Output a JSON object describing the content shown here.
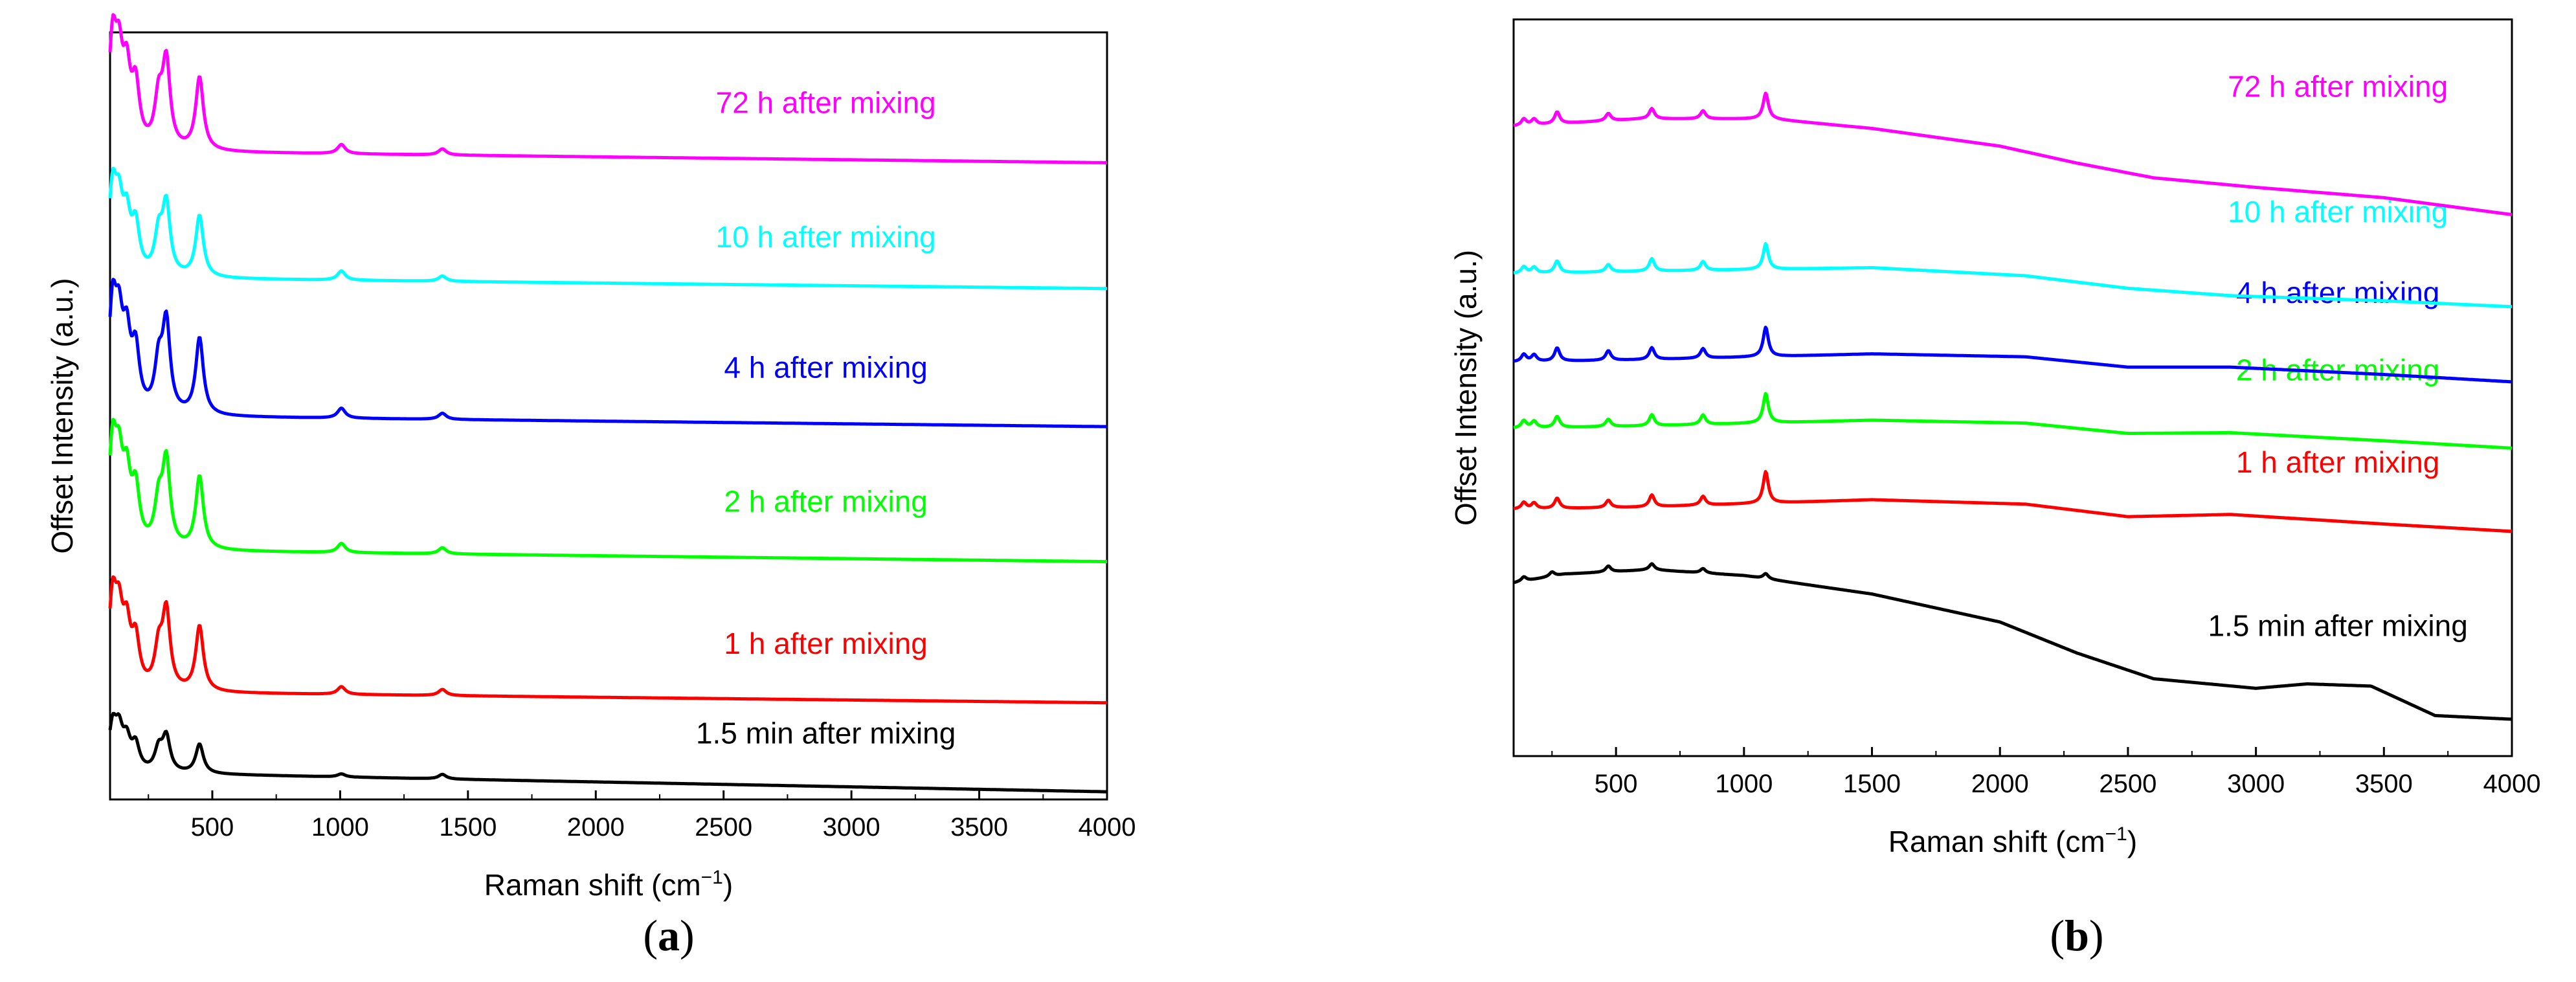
{
  "chart_data": [
    {
      "type": "line",
      "panel_label": "a",
      "xlabel": "Raman shift (cm",
      "xlabel_sup": "−1",
      "xlabel_end": ")",
      "ylabel": "Offset Intensity (a.u.)",
      "xlim": [
        100,
        4000
      ],
      "ylim": [
        0,
        100
      ],
      "xticks": [
        500,
        1000,
        1500,
        2000,
        2500,
        3000,
        3500,
        4000
      ],
      "yticks_labeled": false,
      "series": [
        {
          "name": "1.5 min after mixing",
          "color": "#000000",
          "baseline": 3.5,
          "end": 1.0,
          "label_x": 2900,
          "label_y": 7.3,
          "peaks": [
            [
              110,
              5.5
            ],
            [
              135,
              4.5
            ],
            [
              165,
              3.5
            ],
            [
              200,
              3.2
            ],
            [
              290,
              2.8
            ],
            [
              320,
              4.5
            ],
            [
              450,
              3.8
            ],
            [
              1005,
              0.4
            ],
            [
              1400,
              0.6
            ]
          ]
        },
        {
          "name": "1 h after mixing",
          "color": "#ff0000",
          "baseline": 14.0,
          "end": 12.6,
          "label_x": 2900,
          "label_y": 19.0,
          "peaks": [
            [
              110,
              11.0
            ],
            [
              135,
              8.0
            ],
            [
              165,
              7.0
            ],
            [
              200,
              6.0
            ],
            [
              290,
              5.0
            ],
            [
              320,
              10.0
            ],
            [
              450,
              8.5
            ],
            [
              1005,
              1.0
            ],
            [
              1400,
              0.8
            ]
          ]
        },
        {
          "name": "2 h after mixing",
          "color": "#00ff00",
          "baseline": 32.5,
          "end": 31.0,
          "label_x": 2900,
          "label_y": 37.5,
          "peaks": [
            [
              110,
              12.5
            ],
            [
              135,
              9.0
            ],
            [
              165,
              8.0
            ],
            [
              200,
              7.0
            ],
            [
              290,
              5.5
            ],
            [
              320,
              11.0
            ],
            [
              450,
              9.5
            ],
            [
              1005,
              1.2
            ],
            [
              1400,
              0.8
            ]
          ]
        },
        {
          "name": "4 h after mixing",
          "color": "#0000ff",
          "baseline": 50.0,
          "end": 48.6,
          "label_x": 2900,
          "label_y": 55.0,
          "peaks": [
            [
              110,
              13.0
            ],
            [
              135,
              9.5
            ],
            [
              165,
              8.5
            ],
            [
              200,
              7.5
            ],
            [
              290,
              6.0
            ],
            [
              320,
              11.5
            ],
            [
              450,
              10.0
            ],
            [
              1005,
              1.3
            ],
            [
              1400,
              0.8
            ]
          ]
        },
        {
          "name": "10 h after mixing",
          "color": "#00ffff",
          "baseline": 68.0,
          "end": 66.6,
          "label_x": 2900,
          "label_y": 72.0,
          "peaks": [
            [
              110,
              10.5
            ],
            [
              135,
              7.5
            ],
            [
              165,
              6.5
            ],
            [
              200,
              6.0
            ],
            [
              290,
              5.0
            ],
            [
              320,
              9.0
            ],
            [
              450,
              8.0
            ],
            [
              1005,
              1.2
            ],
            [
              1400,
              0.7
            ]
          ]
        },
        {
          "name": "72 h after mixing",
          "color": "#ff00ff",
          "baseline": 84.5,
          "end": 83.0,
          "label_x": 2900,
          "label_y": 89.5,
          "peaks": [
            [
              110,
              13.0
            ],
            [
              135,
              9.5
            ],
            [
              165,
              8.5
            ],
            [
              200,
              7.5
            ],
            [
              290,
              6.0
            ],
            [
              320,
              11.0
            ],
            [
              450,
              9.5
            ],
            [
              1005,
              1.2
            ],
            [
              1400,
              0.8
            ]
          ]
        }
      ]
    },
    {
      "type": "line",
      "panel_label": "b",
      "xlabel": "Raman shift (cm",
      "xlabel_sup": "−1",
      "xlabel_end": ")",
      "ylabel": "Offset Intensity (a.u.)",
      "xlim": [
        100,
        4000
      ],
      "ylim": [
        0,
        100
      ],
      "xticks": [
        500,
        1000,
        1500,
        2000,
        2500,
        3000,
        3500,
        4000
      ],
      "yticks_labeled": false,
      "series": [
        {
          "name": "1.5 min after mixing",
          "color": "#000000",
          "curve": [
            [
              100,
              23.5
            ],
            [
              300,
              24.7
            ],
            [
              640,
              25.3
            ],
            [
              1000,
              24.5
            ],
            [
              1500,
              22.0
            ],
            [
              2000,
              18.2
            ],
            [
              2300,
              14.0
            ],
            [
              2600,
              10.5
            ],
            [
              3000,
              9.2
            ],
            [
              3200,
              9.8
            ],
            [
              3450,
              9.5
            ],
            [
              3700,
              5.5
            ],
            [
              4000,
              5.0
            ]
          ],
          "peaks": [
            [
              140,
              0.6
            ],
            [
              250,
              0.6
            ],
            [
              470,
              0.8
            ],
            [
              640,
              0.8
            ],
            [
              840,
              0.6
            ],
            [
              1085,
              0.7
            ]
          ],
          "label_x": 3320,
          "label_y": 16.3
        },
        {
          "name": "1 h after mixing",
          "color": "#ff0000",
          "curve": [
            [
              100,
              33.5
            ],
            [
              600,
              33.8
            ],
            [
              1500,
              34.8
            ],
            [
              2100,
              34.2
            ],
            [
              2500,
              32.5
            ],
            [
              2900,
              32.8
            ],
            [
              3500,
              31.5
            ],
            [
              4000,
              30.5
            ]
          ],
          "peaks": [
            [
              140,
              0.9
            ],
            [
              180,
              0.8
            ],
            [
              270,
              1.4
            ],
            [
              470,
              1.0
            ],
            [
              640,
              1.6
            ],
            [
              840,
              1.2
            ],
            [
              1085,
              4.3
            ]
          ],
          "label_x": 3320,
          "label_y": 38.5
        },
        {
          "name": "2 h after mixing",
          "color": "#00ff00",
          "curve": [
            [
              100,
              44.5
            ],
            [
              600,
              44.8
            ],
            [
              1500,
              45.6
            ],
            [
              2100,
              45.2
            ],
            [
              2500,
              43.8
            ],
            [
              2900,
              43.9
            ],
            [
              3500,
              42.8
            ],
            [
              4000,
              41.8
            ]
          ],
          "peaks": [
            [
              140,
              1.0
            ],
            [
              180,
              0.9
            ],
            [
              270,
              1.5
            ],
            [
              470,
              1.0
            ],
            [
              640,
              1.5
            ],
            [
              840,
              1.3
            ],
            [
              1085,
              4.0
            ]
          ],
          "label_x": 3320,
          "label_y": 51.0
        },
        {
          "name": "4 h after mixing",
          "color": "#0000ff",
          "curve": [
            [
              100,
              53.5
            ],
            [
              600,
              53.8
            ],
            [
              1500,
              54.6
            ],
            [
              2100,
              54.2
            ],
            [
              2500,
              52.8
            ],
            [
              2900,
              52.8
            ],
            [
              3500,
              51.8
            ],
            [
              4000,
              50.8
            ]
          ],
          "peaks": [
            [
              140,
              1.0
            ],
            [
              180,
              0.9
            ],
            [
              270,
              1.8
            ],
            [
              470,
              1.3
            ],
            [
              640,
              1.6
            ],
            [
              840,
              1.3
            ],
            [
              1085,
              4.0
            ]
          ],
          "label_x": 3320,
          "label_y": 61.5
        },
        {
          "name": "10 h after mixing",
          "color": "#00ffff",
          "curve": [
            [
              100,
              65.5
            ],
            [
              600,
              65.8
            ],
            [
              1500,
              66.3
            ],
            [
              2100,
              65.2
            ],
            [
              2500,
              63.5
            ],
            [
              2900,
              62.5
            ],
            [
              3500,
              61.8
            ],
            [
              4000,
              61.0
            ]
          ],
          "peaks": [
            [
              140,
              0.9
            ],
            [
              180,
              0.8
            ],
            [
              270,
              1.6
            ],
            [
              470,
              1.0
            ],
            [
              640,
              1.7
            ],
            [
              840,
              1.2
            ],
            [
              1085,
              3.5
            ]
          ],
          "label_x": 3320,
          "label_y": 72.5
        },
        {
          "name": "72 h after mixing",
          "color": "#ff00ff",
          "curve": [
            [
              100,
              85.5
            ],
            [
              600,
              86.5
            ],
            [
              1100,
              86.5
            ],
            [
              1500,
              85.2
            ],
            [
              2000,
              82.8
            ],
            [
              2300,
              80.5
            ],
            [
              2600,
              78.5
            ],
            [
              3000,
              77.2
            ],
            [
              3500,
              75.8
            ],
            [
              4000,
              73.5
            ]
          ],
          "peaks": [
            [
              140,
              0.9
            ],
            [
              180,
              0.8
            ],
            [
              270,
              1.6
            ],
            [
              470,
              1.0
            ],
            [
              640,
              1.4
            ],
            [
              840,
              1.1
            ],
            [
              1085,
              3.5
            ]
          ],
          "label_x": 3320,
          "label_y": 89.5
        }
      ]
    }
  ]
}
